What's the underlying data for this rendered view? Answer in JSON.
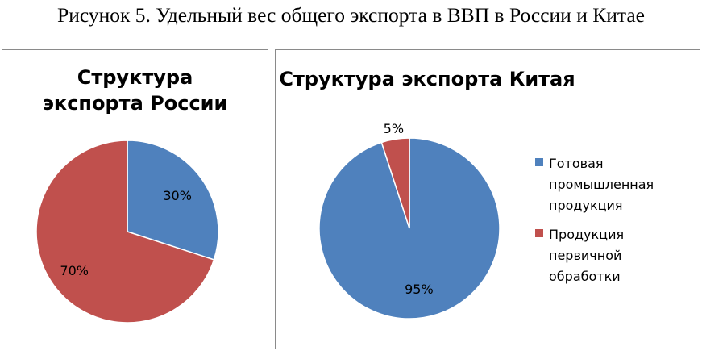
{
  "caption": "Рисунок 5. Удельный вес общего экспорта  в  ВВП в России и Китае",
  "legend": [
    {
      "label": "Готовая\nпромышленная\nпродукция",
      "color": "#4f81bd"
    },
    {
      "label": "Продукция\nпервичной\nобработки",
      "color": "#c0504d"
    }
  ],
  "chart_data": [
    {
      "type": "pie",
      "title": "Структура экспорта России",
      "categories": [
        "Готовая промышленная продукция",
        "Продукция первичной обработки"
      ],
      "values": [
        30,
        70
      ],
      "data_labels": [
        "30%",
        "70%"
      ],
      "colors": [
        "#4f81bd",
        "#c0504d"
      ]
    },
    {
      "type": "pie",
      "title": "Структура экспорта Китая",
      "categories": [
        "Готовая промышленная продукция",
        "Продукция первичной обработки"
      ],
      "values": [
        95,
        5
      ],
      "data_labels": [
        "95%",
        "5%"
      ],
      "colors": [
        "#4f81bd",
        "#c0504d"
      ],
      "legend_position": "right"
    }
  ]
}
